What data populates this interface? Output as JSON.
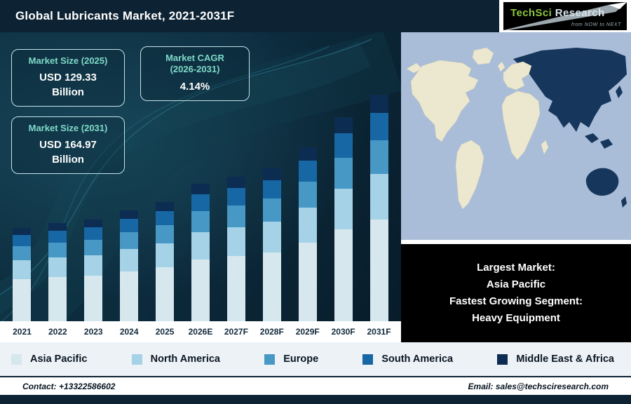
{
  "header": {
    "title": "Global Lubricants Market, 2021-2031F",
    "logo": {
      "brand_primary": "TechSci",
      "brand_secondary": "Research",
      "tagline": "from NOW to NEXT"
    }
  },
  "info_boxes": {
    "size_2025": {
      "title": "Market Size (2025)",
      "value": "USD 129.33",
      "unit": "Billion"
    },
    "cagr": {
      "title": "Market CAGR\n(2026-2031)",
      "value": "4.14%"
    },
    "size_2031": {
      "title": "Market Size (2031)",
      "value": "USD 164.97",
      "unit": "Billion"
    }
  },
  "highlight_panel": {
    "line1": "Largest Market:",
    "line2": "Asia Pacific",
    "line3": "Fastest Growing Segment:",
    "line4": "Heavy Equipment"
  },
  "footer": {
    "contact": "Contact: +13322586602",
    "email": "Email: sales@techsciresearch.com"
  },
  "chart_data": {
    "type": "bar",
    "stacked": true,
    "title": "Global Lubricants Market, 2021-2031F",
    "xlabel": "Year",
    "ylabel": "",
    "grid": false,
    "legend_position": "bottom",
    "axis_values_shown": false,
    "unit_note": "Bar values are relative heights estimated from pixels; y-axis is unlabeled in source",
    "categories": [
      "2021",
      "2022",
      "2023",
      "2024",
      "2025",
      "2026E",
      "2027F",
      "2028F",
      "2029F",
      "2030F",
      "2031F"
    ],
    "series": [
      {
        "name": "Asia Pacific",
        "color": "#d7e7ee",
        "values": [
          60,
          63,
          65,
          71,
          77,
          88,
          93,
          98,
          112,
          131,
          145
        ]
      },
      {
        "name": "North America",
        "color": "#a5d2e6",
        "values": [
          27,
          28,
          29,
          32,
          34,
          39,
          41,
          44,
          50,
          58,
          65
        ]
      },
      {
        "name": "Europe",
        "color": "#4898c6",
        "values": [
          20,
          21,
          22,
          24,
          26,
          30,
          31,
          33,
          37,
          44,
          48
        ]
      },
      {
        "name": "South America",
        "color": "#1767a5",
        "values": [
          16,
          17,
          18,
          19,
          20,
          24,
          25,
          26,
          30,
          35,
          39
        ]
      },
      {
        "name": "Middle East & Africa",
        "color": "#0c2c52",
        "values": [
          10,
          11,
          11,
          12,
          13,
          15,
          16,
          17,
          19,
          23,
          26
        ]
      }
    ],
    "annotations": [
      "Market Size (2025): USD 129.33 Billion",
      "Market CAGR (2026-2031): 4.14%",
      "Market Size (2031): USD 164.97 Billion",
      "Largest Market: Asia Pacific",
      "Fastest Growing Segment: Heavy Equipment"
    ]
  }
}
